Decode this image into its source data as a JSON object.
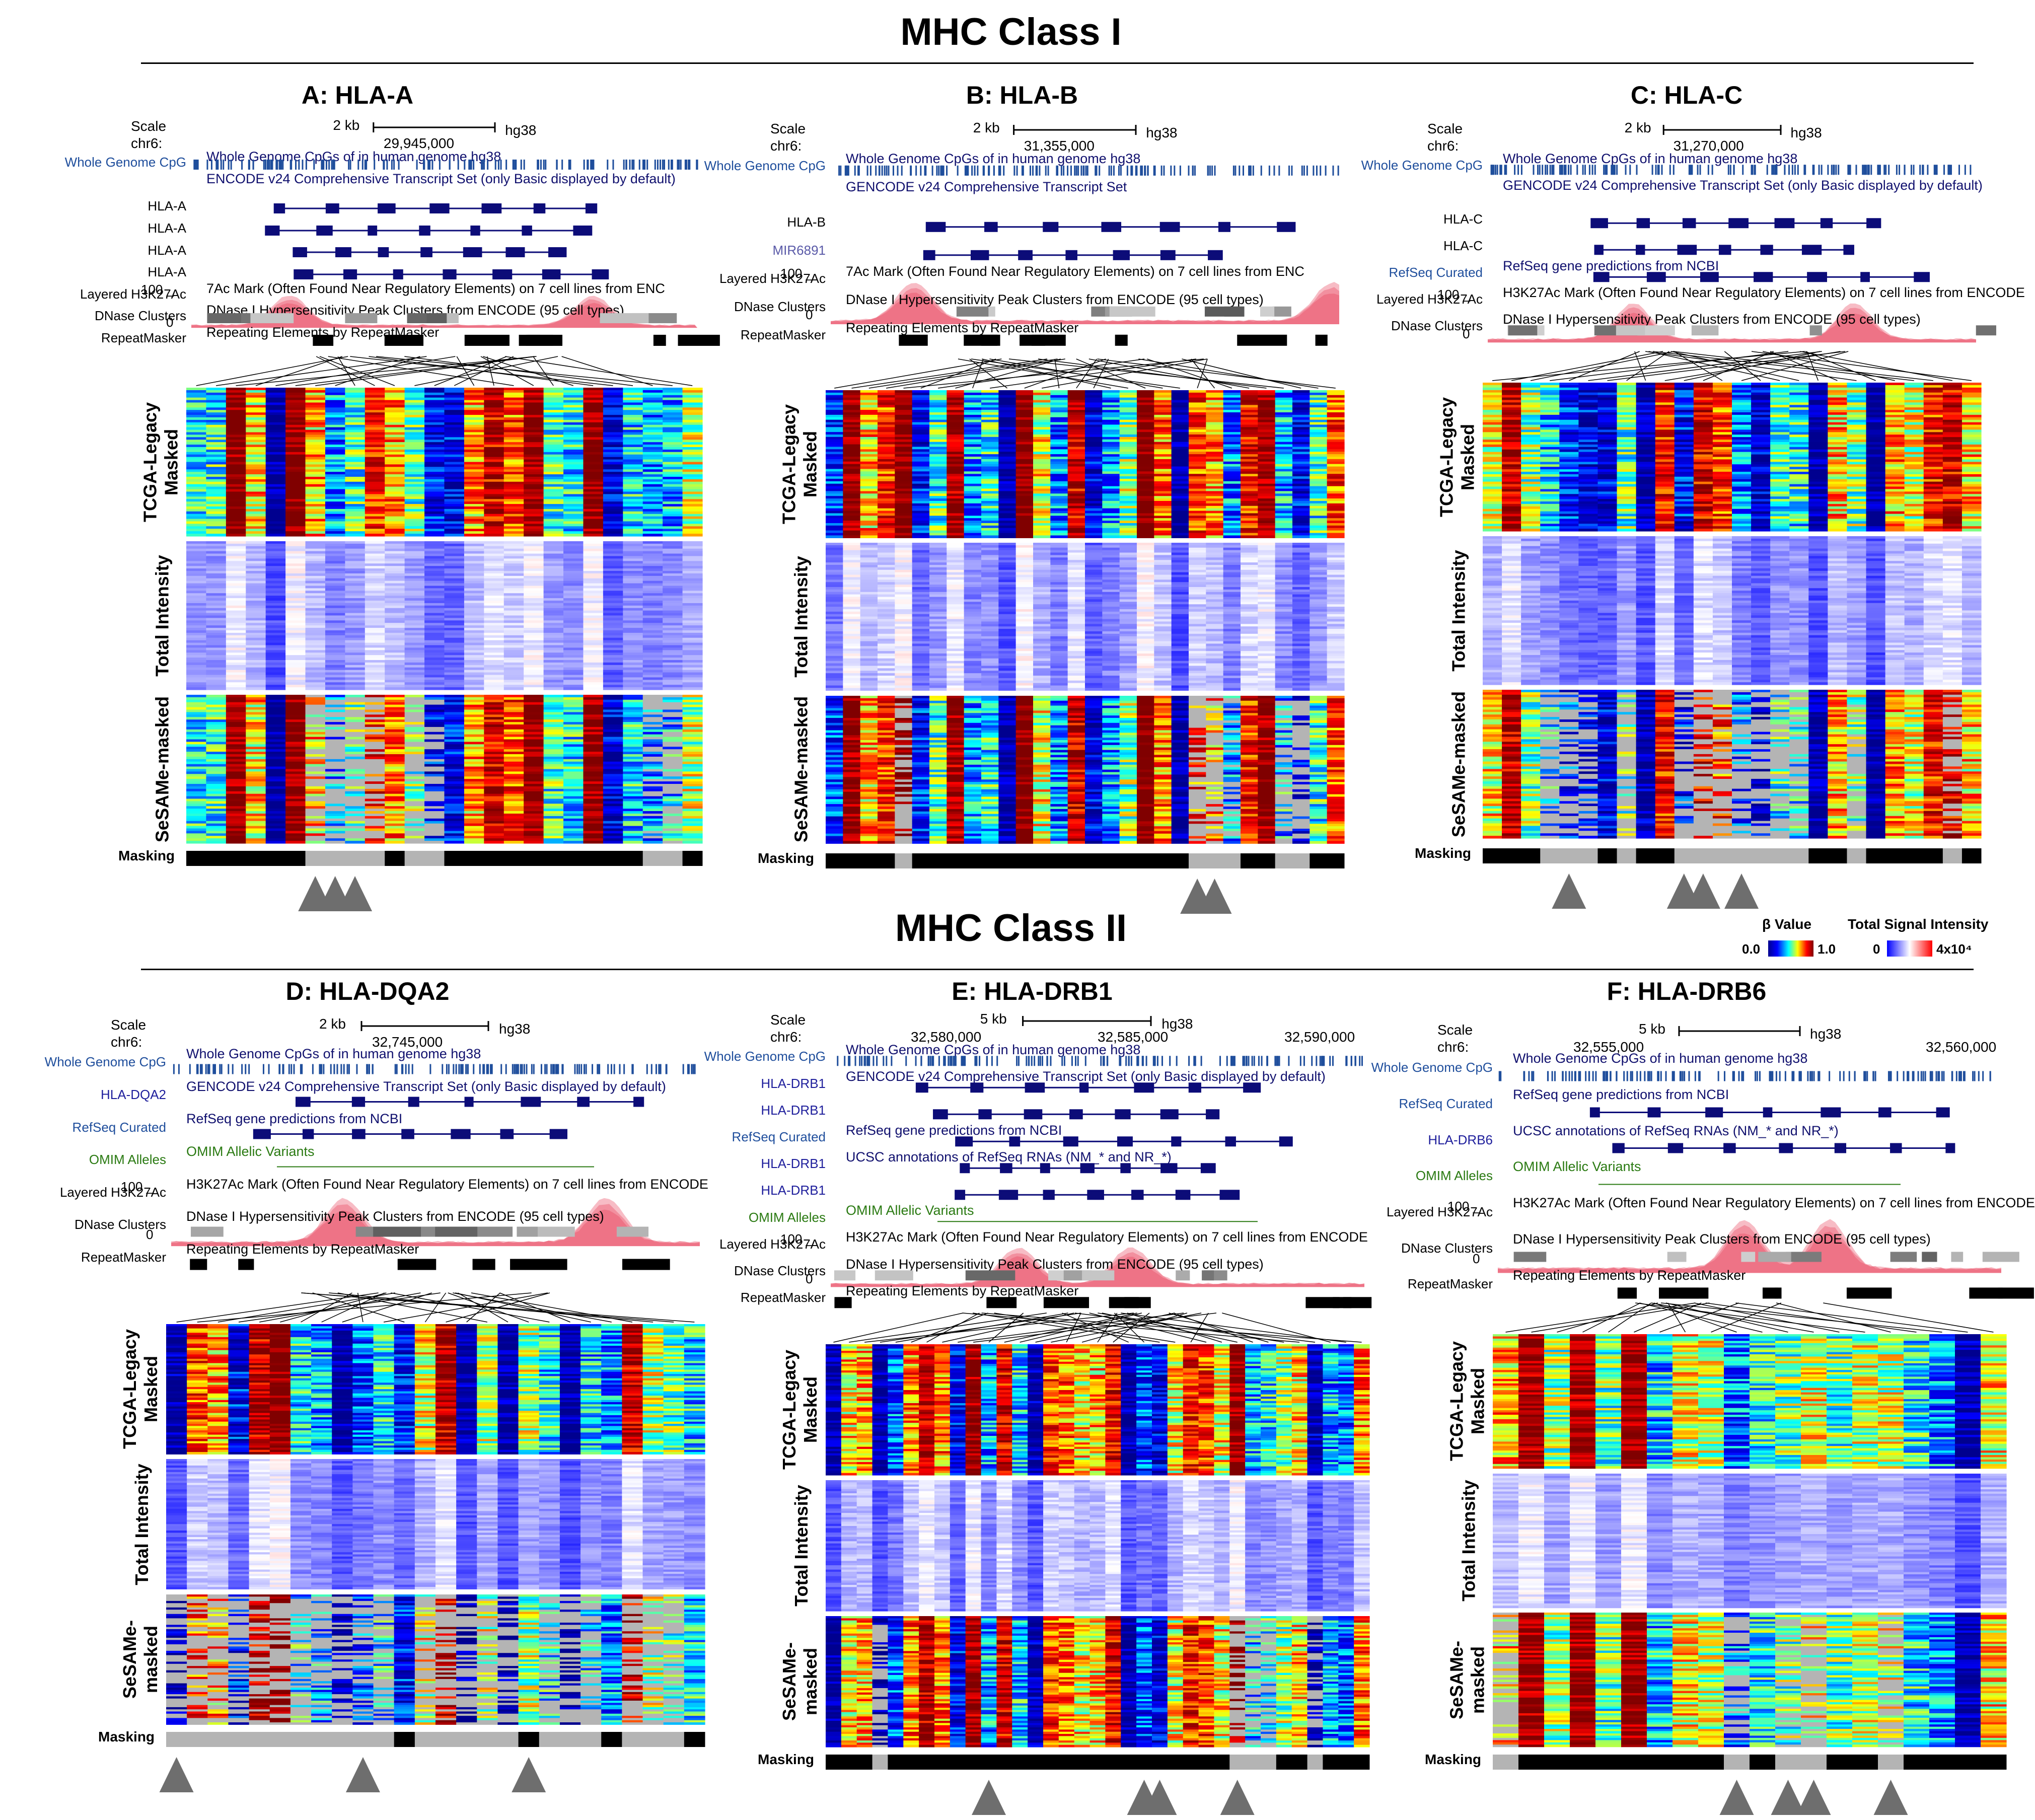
{
  "sections": [
    {
      "title": "MHC Class I"
    },
    {
      "title": "MHC Class II"
    }
  ],
  "colors": {
    "beta_scale": [
      "#00008f",
      "#0000ff",
      "#00ffff",
      "#ffff00",
      "#ff0000",
      "#800000"
    ],
    "intensity_scale": [
      "#0000ff",
      "#ffffff",
      "#ff0000"
    ],
    "masked": "#b4b4b4",
    "unmasked": "#000000",
    "cpg": "#1f4e9c",
    "gene": "#0c0c78",
    "h3k27ac": "#e8405a",
    "triangle": "#6e6e6e"
  },
  "legend": {
    "beta_title": "β Value",
    "beta_min": "0.0",
    "beta_max": "1.0",
    "intensity_title": "Total Signal Intensity",
    "intensity_min": "0",
    "intensity_max": "4x10⁴"
  },
  "heatmap_labels": {
    "tcga": "TCGA-Legacy Masked",
    "tcga_l1": "TCGA-Legacy",
    "tcga_l2": "Masked",
    "total": "Total Intensity",
    "sesame": "SeSAMe-masked",
    "sesame_l1": "SeSAMe-",
    "sesame_l2": "masked",
    "masking": "Masking"
  },
  "chart_data": [
    {
      "type": "heatmap",
      "title": "A: HLA-A",
      "browser": {
        "scale_label": "Scale",
        "chr_label": "chr6:",
        "scale_bar": "2 kb",
        "assembly": "hg38",
        "coords": [
          "29,945,000"
        ],
        "tracks": [
          {
            "label": "Whole Genome CpG",
            "desc": "Whole Genome CpGs of in human genome hg38"
          },
          {
            "label": "",
            "desc": "ENCODE v24 Comprehensive Transcript Set (only Basic displayed by default)"
          },
          {
            "label": "HLA-A",
            "desc": ""
          },
          {
            "label": "HLA-A",
            "desc": ""
          },
          {
            "label": "HLA-A",
            "desc": ""
          },
          {
            "label": "HLA-A",
            "desc": ""
          },
          {
            "label": "Layered H3K27Ac",
            "desc": "7Ac Mark (Often Found Near Regulatory Elements) on 7 cell lines from ENC",
            "max": "100 _",
            "min": "0"
          },
          {
            "label": "DNase Clusters",
            "desc": "DNase I Hypersensitivity Peak Clusters from ENCODE (95 cell types)"
          },
          {
            "label": "RepeatMasker",
            "desc": "Repeating Elements by RepeatMasker"
          }
        ]
      },
      "n_probes": 26,
      "masking": [
        0,
        0,
        0,
        0,
        0,
        0,
        1,
        1,
        1,
        1,
        0,
        1,
        1,
        0,
        0,
        0,
        0,
        0,
        0,
        0,
        0,
        0,
        0,
        1,
        1,
        0
      ],
      "highlighted_probes": [
        6,
        7,
        8
      ]
    },
    {
      "type": "heatmap",
      "title": "B: HLA-B",
      "browser": {
        "scale_label": "Scale",
        "chr_label": "chr6:",
        "scale_bar": "2 kb",
        "assembly": "hg38",
        "coords": [
          "31,355,000"
        ],
        "tracks": [
          {
            "label": "Whole Genome CpG",
            "desc": "Whole Genome CpGs of in human genome hg38"
          },
          {
            "label": "",
            "desc": "GENCODE v24 Comprehensive Transcript Set"
          },
          {
            "label": "HLA-B",
            "desc": ""
          },
          {
            "label": "MIR6891",
            "desc": ""
          },
          {
            "label": "Layered H3K27Ac",
            "desc": "7Ac Mark (Often Found Near Regulatory Elements) on 7 cell lines from ENC",
            "max": "100 _",
            "min": "0"
          },
          {
            "label": "DNase Clusters",
            "desc": "DNase I Hypersensitivity Peak Clusters from ENCODE (95 cell types)"
          },
          {
            "label": "RepeatMasker",
            "desc": "Repeating Elements by RepeatMasker"
          }
        ]
      },
      "n_probes": 30,
      "masking": [
        0,
        0,
        0,
        0,
        1,
        0,
        0,
        0,
        0,
        0,
        0,
        0,
        0,
        0,
        0,
        0,
        0,
        0,
        0,
        0,
        0,
        1,
        1,
        1,
        0,
        0,
        1,
        1,
        0,
        0
      ],
      "highlighted_probes": [
        21,
        22
      ]
    },
    {
      "type": "heatmap",
      "title": "C: HLA-C",
      "browser": {
        "scale_label": "Scale",
        "chr_label": "chr6:",
        "scale_bar": "2 kb",
        "assembly": "hg38",
        "coords": [
          "31,270,000"
        ],
        "tracks": [
          {
            "label": "Whole Genome CpG",
            "desc": "Whole Genome CpGs of in human genome hg38"
          },
          {
            "label": "",
            "desc": "GENCODE v24 Comprehensive Transcript Set (only Basic displayed by default)"
          },
          {
            "label": "HLA-C",
            "desc": ""
          },
          {
            "label": "HLA-C",
            "desc": ""
          },
          {
            "label": "RefSeq Curated",
            "desc": "RefSeq gene predictions from NCBI"
          },
          {
            "label": "Layered H3K27Ac",
            "desc": "H3K27Ac Mark (Often Found Near Regulatory Elements) on 7 cell lines from ENCODE",
            "max": "100 _",
            "min": "0"
          },
          {
            "label": "DNase Clusters",
            "desc": "DNase I Hypersensitivity Peak Clusters from ENCODE (95 cell types)"
          }
        ]
      },
      "n_probes": 26,
      "masking": [
        0,
        0,
        0,
        1,
        1,
        1,
        0,
        1,
        0,
        0,
        1,
        1,
        1,
        1,
        1,
        1,
        1,
        0,
        0,
        1,
        0,
        0,
        0,
        0,
        1,
        0
      ],
      "highlighted_probes": [
        4,
        10,
        11,
        13
      ]
    },
    {
      "type": "heatmap",
      "title": "D: HLA-DQA2",
      "browser": {
        "scale_label": "Scale",
        "chr_label": "chr6:",
        "scale_bar": "2 kb",
        "assembly": "hg38",
        "coords": [
          "32,745,000"
        ],
        "tracks": [
          {
            "label": "Whole Genome CpG",
            "desc": "Whole Genome CpGs of in human genome hg38"
          },
          {
            "label": "HLA-DQA2",
            "desc": "GENCODE v24 Comprehensive Transcript Set (only Basic displayed by default)"
          },
          {
            "label": "RefSeq Curated",
            "desc": "RefSeq gene predictions from NCBI"
          },
          {
            "label": "OMIM Alleles",
            "desc": "OMIM Allelic Variants"
          },
          {
            "label": "Layered H3K27Ac",
            "desc": "H3K27Ac Mark (Often Found Near Regulatory Elements) on 7 cell lines from ENCODE",
            "max": "100 _",
            "min": "0"
          },
          {
            "label": "DNase Clusters",
            "desc": "DNase I Hypersensitivity Peak Clusters from ENCODE (95 cell types)"
          },
          {
            "label": "RepeatMasker",
            "desc": "Repeating Elements by RepeatMasker"
          }
        ],
        "extra_label": "Layered H3K27Ac"
      },
      "n_probes": 26,
      "masking": [
        1,
        1,
        1,
        1,
        1,
        1,
        1,
        1,
        1,
        1,
        1,
        0,
        1,
        1,
        1,
        1,
        1,
        0,
        1,
        1,
        1,
        0,
        1,
        1,
        1,
        0
      ],
      "highlighted_probes": [
        0,
        9,
        17
      ]
    },
    {
      "type": "heatmap",
      "title": "E: HLA-DRB1",
      "browser": {
        "scale_label": "Scale",
        "chr_label": "chr6:",
        "scale_bar": "5 kb",
        "assembly": "hg38",
        "coords": [
          "32,580,000",
          "32,585,000",
          "32,590,000"
        ],
        "tracks": [
          {
            "label": "Whole Genome CpG",
            "desc": "Whole Genome CpGs of in human genome hg38"
          },
          {
            "label": "HLA-DRB1",
            "desc": "GENCODE v24 Comprehensive Transcript Set (only Basic displayed by default)"
          },
          {
            "label": "HLA-DRB1",
            "desc": ""
          },
          {
            "label": "RefSeq Curated",
            "desc": "RefSeq gene predictions from NCBI"
          },
          {
            "label": "HLA-DRB1",
            "desc": "UCSC annotations of RefSeq RNAs (NM_* and NR_*)"
          },
          {
            "label": "HLA-DRB1",
            "desc": ""
          },
          {
            "label": "OMIM Alleles",
            "desc": "OMIM Allelic Variants"
          },
          {
            "label": "Layered H3K27Ac",
            "desc": "H3K27Ac Mark (Often Found Near Regulatory Elements) on 7 cell lines from ENCODE",
            "max": "100 _",
            "min": "0"
          },
          {
            "label": "DNase Clusters",
            "desc": "DNase I Hypersensitivity Peak Clusters from ENCODE (95 cell types)"
          },
          {
            "label": "RepeatMasker",
            "desc": "Repeating Elements by RepeatMasker"
          }
        ]
      },
      "n_probes": 35,
      "masking": [
        0,
        0,
        0,
        1,
        0,
        0,
        0,
        0,
        0,
        0,
        0,
        0,
        0,
        0,
        0,
        0,
        0,
        0,
        0,
        0,
        0,
        0,
        0,
        0,
        0,
        0,
        1,
        1,
        1,
        0,
        0,
        1,
        0,
        0,
        0
      ],
      "highlighted_probes": [
        10,
        20,
        21,
        26
      ]
    },
    {
      "type": "heatmap",
      "title": "F: HLA-DRB6",
      "browser": {
        "scale_label": "Scale",
        "chr_label": "chr6:",
        "scale_bar": "5 kb",
        "assembly": "hg38",
        "coords": [
          "32,555,000",
          "32,560,000"
        ],
        "tracks": [
          {
            "label": "Whole Genome CpG",
            "desc": "Whole Genome CpGs of in human genome hg38"
          },
          {
            "label": "RefSeq Curated",
            "desc": "RefSeq gene predictions from NCBI"
          },
          {
            "label": "HLA-DRB6",
            "desc": "UCSC annotations of RefSeq RNAs (NM_* and NR_*)"
          },
          {
            "label": "OMIM Alleles",
            "desc": "OMIM Allelic Variants"
          },
          {
            "label": "Layered H3K27Ac",
            "desc": "H3K27Ac Mark (Often Found Near Regulatory Elements) on 7 cell lines from ENCODE",
            "max": "100 _",
            "min": "0"
          },
          {
            "label": "DNase Clusters",
            "desc": "DNase I Hypersensitivity Peak Clusters from ENCODE (95 cell types)"
          },
          {
            "label": "RepeatMasker",
            "desc": "Repeating Elements by RepeatMasker"
          }
        ]
      },
      "n_probes": 20,
      "masking": [
        1,
        0,
        0,
        0,
        0,
        0,
        0,
        0,
        0,
        1,
        0,
        1,
        1,
        0,
        0,
        1,
        0,
        0,
        0,
        0
      ],
      "highlighted_probes": [
        9,
        11,
        12,
        15
      ]
    }
  ]
}
